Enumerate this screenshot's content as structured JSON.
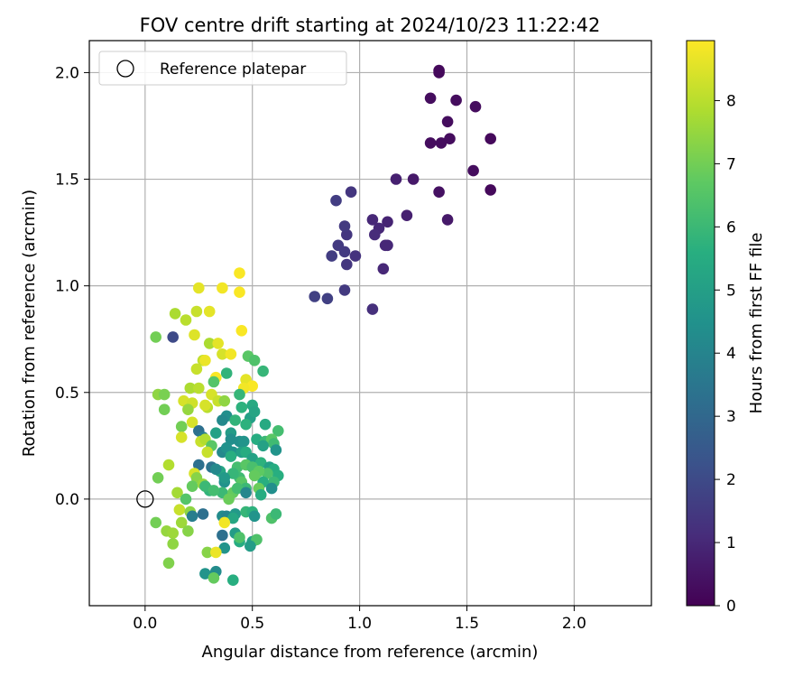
{
  "chart_data": {
    "type": "scatter",
    "title": "FOV centre drift starting at 2024/10/23 11:22:42",
    "xlabel": "Angular distance from reference (arcmin)",
    "ylabel": "Rotation from reference (arcmin)",
    "xlim": [
      -0.26,
      2.36
    ],
    "ylim": [
      -0.5,
      2.15
    ],
    "xticks": [
      0.0,
      0.5,
      1.0,
      1.5,
      2.0
    ],
    "xtick_labels": [
      "0.0",
      "0.5",
      "1.0",
      "1.5",
      "2.0"
    ],
    "yticks": [
      0.0,
      0.5,
      1.0,
      1.5,
      2.0
    ],
    "ytick_labels": [
      "0.0",
      "0.5",
      "1.0",
      "1.5",
      "2.0"
    ],
    "grid": true,
    "legend": {
      "placement": "top-left",
      "entries": [
        "Reference platepar"
      ]
    },
    "reference_point": {
      "x": 0.0,
      "y": 0.0,
      "label": "Reference platepar"
    },
    "colorbar": {
      "label": "Hours from first FF file",
      "colormap": "viridis",
      "range": [
        0,
        8.95
      ],
      "ticks": [
        0,
        1,
        2,
        3,
        4,
        5,
        6,
        7,
        8
      ],
      "tick_labels": [
        "0",
        "1",
        "2",
        "3",
        "4",
        "5",
        "6",
        "7",
        "8"
      ]
    },
    "points": [
      {
        "x": 1.37,
        "y": 2.01,
        "h": 0.2
      },
      {
        "x": 1.37,
        "y": 2.0,
        "h": 0.2
      },
      {
        "x": 1.33,
        "y": 1.88,
        "h": 0.3
      },
      {
        "x": 1.45,
        "y": 1.87,
        "h": 0.3
      },
      {
        "x": 1.54,
        "y": 1.84,
        "h": 0.3
      },
      {
        "x": 1.41,
        "y": 1.77,
        "h": 0.3
      },
      {
        "x": 1.61,
        "y": 1.69,
        "h": 0.2
      },
      {
        "x": 1.42,
        "y": 1.69,
        "h": 0.3
      },
      {
        "x": 1.38,
        "y": 1.67,
        "h": 0.3
      },
      {
        "x": 1.33,
        "y": 1.67,
        "h": 0.3
      },
      {
        "x": 1.53,
        "y": 1.54,
        "h": 0.3
      },
      {
        "x": 1.25,
        "y": 1.5,
        "h": 0.6
      },
      {
        "x": 1.17,
        "y": 1.5,
        "h": 0.8
      },
      {
        "x": 1.37,
        "y": 1.44,
        "h": 0.4
      },
      {
        "x": 1.61,
        "y": 1.45,
        "h": 0.2
      },
      {
        "x": 1.41,
        "y": 1.31,
        "h": 0.6
      },
      {
        "x": 1.22,
        "y": 1.33,
        "h": 0.8
      },
      {
        "x": 1.13,
        "y": 1.3,
        "h": 0.9
      },
      {
        "x": 1.06,
        "y": 1.31,
        "h": 1.0
      },
      {
        "x": 1.09,
        "y": 1.27,
        "h": 1.0
      },
      {
        "x": 1.07,
        "y": 1.24,
        "h": 1.1
      },
      {
        "x": 0.94,
        "y": 1.24,
        "h": 1.4
      },
      {
        "x": 0.93,
        "y": 1.28,
        "h": 1.5
      },
      {
        "x": 0.96,
        "y": 1.44,
        "h": 1.4
      },
      {
        "x": 0.89,
        "y": 1.4,
        "h": 1.6
      },
      {
        "x": 1.12,
        "y": 1.19,
        "h": 1.0
      },
      {
        "x": 1.13,
        "y": 1.19,
        "h": 1.0
      },
      {
        "x": 0.9,
        "y": 1.19,
        "h": 1.5
      },
      {
        "x": 0.93,
        "y": 1.16,
        "h": 1.5
      },
      {
        "x": 0.87,
        "y": 1.14,
        "h": 1.6
      },
      {
        "x": 0.98,
        "y": 1.14,
        "h": 1.3
      },
      {
        "x": 0.94,
        "y": 1.1,
        "h": 1.4
      },
      {
        "x": 1.11,
        "y": 1.08,
        "h": 1.0
      },
      {
        "x": 0.79,
        "y": 0.95,
        "h": 1.7
      },
      {
        "x": 0.85,
        "y": 0.94,
        "h": 1.7
      },
      {
        "x": 0.93,
        "y": 0.98,
        "h": 1.5
      },
      {
        "x": 1.06,
        "y": 0.89,
        "h": 1.2
      },
      {
        "x": 0.13,
        "y": 0.76,
        "h": 2.0
      },
      {
        "x": 0.44,
        "y": 1.06,
        "h": 8.9
      },
      {
        "x": 0.25,
        "y": 0.99,
        "h": 8.6
      },
      {
        "x": 0.36,
        "y": 0.99,
        "h": 8.8
      },
      {
        "x": 0.44,
        "y": 0.97,
        "h": 8.9
      },
      {
        "x": 0.14,
        "y": 0.87,
        "h": 7.8
      },
      {
        "x": 0.19,
        "y": 0.84,
        "h": 8.0
      },
      {
        "x": 0.24,
        "y": 0.88,
        "h": 8.2
      },
      {
        "x": 0.3,
        "y": 0.88,
        "h": 8.6
      },
      {
        "x": 0.45,
        "y": 0.79,
        "h": 8.9
      },
      {
        "x": 0.23,
        "y": 0.77,
        "h": 8.5
      },
      {
        "x": 0.05,
        "y": 0.76,
        "h": 7.0
      },
      {
        "x": 0.3,
        "y": 0.73,
        "h": 7.8
      },
      {
        "x": 0.34,
        "y": 0.73,
        "h": 8.6
      },
      {
        "x": 0.36,
        "y": 0.68,
        "h": 8.4
      },
      {
        "x": 0.4,
        "y": 0.68,
        "h": 8.8
      },
      {
        "x": 0.27,
        "y": 0.65,
        "h": 8.1
      },
      {
        "x": 0.28,
        "y": 0.65,
        "h": 8.7
      },
      {
        "x": 0.38,
        "y": 0.59,
        "h": 5.8
      },
      {
        "x": 0.24,
        "y": 0.61,
        "h": 8.2
      },
      {
        "x": 0.33,
        "y": 0.57,
        "h": 8.9
      },
      {
        "x": 0.32,
        "y": 0.55,
        "h": 6.5
      },
      {
        "x": 0.47,
        "y": 0.56,
        "h": 8.6
      },
      {
        "x": 0.5,
        "y": 0.53,
        "h": 8.9
      },
      {
        "x": 0.06,
        "y": 0.49,
        "h": 7.4
      },
      {
        "x": 0.09,
        "y": 0.49,
        "h": 7.1
      },
      {
        "x": 0.21,
        "y": 0.52,
        "h": 7.8
      },
      {
        "x": 0.25,
        "y": 0.52,
        "h": 8.0
      },
      {
        "x": 0.31,
        "y": 0.49,
        "h": 8.4
      },
      {
        "x": 0.34,
        "y": 0.46,
        "h": 8.2
      },
      {
        "x": 0.18,
        "y": 0.46,
        "h": 8.4
      },
      {
        "x": 0.22,
        "y": 0.45,
        "h": 8.3
      },
      {
        "x": 0.29,
        "y": 0.43,
        "h": 8.0
      },
      {
        "x": 0.37,
        "y": 0.46,
        "h": 7.4
      },
      {
        "x": 0.09,
        "y": 0.42,
        "h": 7.0
      },
      {
        "x": 0.2,
        "y": 0.42,
        "h": 7.5
      },
      {
        "x": 0.28,
        "y": 0.44,
        "h": 8.4
      },
      {
        "x": 0.46,
        "y": 0.52,
        "h": 8.8
      },
      {
        "x": 0.48,
        "y": 0.67,
        "h": 6.6
      },
      {
        "x": 0.51,
        "y": 0.65,
        "h": 6.4
      },
      {
        "x": 0.55,
        "y": 0.6,
        "h": 5.9
      },
      {
        "x": 0.44,
        "y": 0.49,
        "h": 5.9
      },
      {
        "x": 0.5,
        "y": 0.44,
        "h": 5.4
      },
      {
        "x": 0.45,
        "y": 0.43,
        "h": 5.7
      },
      {
        "x": 0.49,
        "y": 0.38,
        "h": 5.0
      },
      {
        "x": 0.51,
        "y": 0.41,
        "h": 5.2
      },
      {
        "x": 0.38,
        "y": 0.39,
        "h": 4.4
      },
      {
        "x": 0.36,
        "y": 0.37,
        "h": 4.2
      },
      {
        "x": 0.42,
        "y": 0.37,
        "h": 5.8
      },
      {
        "x": 0.56,
        "y": 0.35,
        "h": 5.4
      },
      {
        "x": 0.62,
        "y": 0.32,
        "h": 6.2
      },
      {
        "x": 0.47,
        "y": 0.35,
        "h": 5.7
      },
      {
        "x": 0.17,
        "y": 0.34,
        "h": 7.0
      },
      {
        "x": 0.22,
        "y": 0.36,
        "h": 8.4
      },
      {
        "x": 0.25,
        "y": 0.32,
        "h": 3.3
      },
      {
        "x": 0.27,
        "y": 0.29,
        "h": 3.7
      },
      {
        "x": 0.33,
        "y": 0.31,
        "h": 5.1
      },
      {
        "x": 0.4,
        "y": 0.31,
        "h": 4.9
      },
      {
        "x": 0.4,
        "y": 0.28,
        "h": 4.4
      },
      {
        "x": 0.44,
        "y": 0.27,
        "h": 4.4
      },
      {
        "x": 0.46,
        "y": 0.27,
        "h": 4.6
      },
      {
        "x": 0.52,
        "y": 0.28,
        "h": 5.5
      },
      {
        "x": 0.56,
        "y": 0.27,
        "h": 6.0
      },
      {
        "x": 0.59,
        "y": 0.28,
        "h": 6.6
      },
      {
        "x": 0.6,
        "y": 0.26,
        "h": 6.1
      },
      {
        "x": 0.55,
        "y": 0.25,
        "h": 5.1
      },
      {
        "x": 0.61,
        "y": 0.23,
        "h": 4.6
      },
      {
        "x": 0.17,
        "y": 0.29,
        "h": 8.4
      },
      {
        "x": 0.26,
        "y": 0.27,
        "h": 8.2
      },
      {
        "x": 0.28,
        "y": 0.28,
        "h": 7.9
      },
      {
        "x": 0.31,
        "y": 0.25,
        "h": 6.6
      },
      {
        "x": 0.29,
        "y": 0.22,
        "h": 8.2
      },
      {
        "x": 0.36,
        "y": 0.22,
        "h": 4.2
      },
      {
        "x": 0.38,
        "y": 0.24,
        "h": 4.5
      },
      {
        "x": 0.41,
        "y": 0.22,
        "h": 4.5
      },
      {
        "x": 0.45,
        "y": 0.22,
        "h": 5.0
      },
      {
        "x": 0.47,
        "y": 0.22,
        "h": 5.5
      },
      {
        "x": 0.5,
        "y": 0.19,
        "h": 5.1
      },
      {
        "x": 0.54,
        "y": 0.17,
        "h": 5.7
      },
      {
        "x": 0.4,
        "y": 0.2,
        "h": 5.6
      },
      {
        "x": 0.43,
        "y": 0.15,
        "h": 6.2
      },
      {
        "x": 0.47,
        "y": 0.16,
        "h": 6.6
      },
      {
        "x": 0.5,
        "y": 0.15,
        "h": 6.3
      },
      {
        "x": 0.58,
        "y": 0.15,
        "h": 5.0
      },
      {
        "x": 0.6,
        "y": 0.14,
        "h": 5.5
      },
      {
        "x": 0.62,
        "y": 0.11,
        "h": 5.6
      },
      {
        "x": 0.57,
        "y": 0.12,
        "h": 6.4
      },
      {
        "x": 0.6,
        "y": 0.08,
        "h": 6.0
      },
      {
        "x": 0.55,
        "y": 0.08,
        "h": 5.6
      },
      {
        "x": 0.53,
        "y": 0.13,
        "h": 6.7
      },
      {
        "x": 0.51,
        "y": 0.11,
        "h": 6.8
      },
      {
        "x": 0.44,
        "y": 0.1,
        "h": 6.1
      },
      {
        "x": 0.41,
        "y": 0.12,
        "h": 5.9
      },
      {
        "x": 0.35,
        "y": 0.13,
        "h": 5.3
      },
      {
        "x": 0.31,
        "y": 0.15,
        "h": 3.4
      },
      {
        "x": 0.33,
        "y": 0.14,
        "h": 4.2
      },
      {
        "x": 0.25,
        "y": 0.16,
        "h": 3.3
      },
      {
        "x": 0.11,
        "y": 0.16,
        "h": 7.9
      },
      {
        "x": 0.23,
        "y": 0.12,
        "h": 8.4
      },
      {
        "x": 0.24,
        "y": 0.1,
        "h": 7.3
      },
      {
        "x": 0.06,
        "y": 0.1,
        "h": 7.0
      },
      {
        "x": 0.37,
        "y": 0.08,
        "h": 4.5
      },
      {
        "x": 0.37,
        "y": 0.1,
        "h": 4.8
      },
      {
        "x": 0.45,
        "y": 0.08,
        "h": 6.6
      },
      {
        "x": 0.47,
        "y": 0.05,
        "h": 6.0
      },
      {
        "x": 0.53,
        "y": 0.05,
        "h": 6.9
      },
      {
        "x": 0.59,
        "y": 0.05,
        "h": 4.4
      },
      {
        "x": 0.3,
        "y": 0.04,
        "h": 5.8
      },
      {
        "x": 0.36,
        "y": 0.03,
        "h": 6.0
      },
      {
        "x": 0.41,
        "y": 0.03,
        "h": 6.8
      },
      {
        "x": 0.43,
        "y": 0.05,
        "h": 6.2
      },
      {
        "x": 0.47,
        "y": 0.03,
        "h": 4.1
      },
      {
        "x": 0.54,
        "y": 0.02,
        "h": 5.5
      },
      {
        "x": 0.15,
        "y": 0.03,
        "h": 7.7
      },
      {
        "x": 0.19,
        "y": 0.0,
        "h": 6.5
      },
      {
        "x": 0.22,
        "y": 0.06,
        "h": 6.8
      },
      {
        "x": 0.27,
        "y": 0.07,
        "h": 7.5
      },
      {
        "x": 0.28,
        "y": 0.06,
        "h": 6.0
      },
      {
        "x": 0.32,
        "y": 0.04,
        "h": 6.2
      },
      {
        "x": 0.39,
        "y": 0.0,
        "h": 6.9
      },
      {
        "x": 0.16,
        "y": -0.05,
        "h": 8.2
      },
      {
        "x": 0.21,
        "y": -0.06,
        "h": 7.4
      },
      {
        "x": 0.22,
        "y": -0.08,
        "h": 3.8
      },
      {
        "x": 0.27,
        "y": -0.07,
        "h": 3.3
      },
      {
        "x": 0.36,
        "y": -0.08,
        "h": 4.3
      },
      {
        "x": 0.38,
        "y": -0.08,
        "h": 4.0
      },
      {
        "x": 0.42,
        "y": -0.07,
        "h": 4.8
      },
      {
        "x": 0.41,
        "y": -0.09,
        "h": 5.3
      },
      {
        "x": 0.47,
        "y": -0.06,
        "h": 5.9
      },
      {
        "x": 0.5,
        "y": -0.06,
        "h": 5.7
      },
      {
        "x": 0.51,
        "y": -0.08,
        "h": 4.6
      },
      {
        "x": 0.59,
        "y": -0.09,
        "h": 6.4
      },
      {
        "x": 0.61,
        "y": -0.07,
        "h": 6.0
      },
      {
        "x": 0.05,
        "y": -0.11,
        "h": 7.0
      },
      {
        "x": 0.17,
        "y": -0.11,
        "h": 7.6
      },
      {
        "x": 0.1,
        "y": -0.15,
        "h": 7.5
      },
      {
        "x": 0.13,
        "y": -0.16,
        "h": 7.6
      },
      {
        "x": 0.2,
        "y": -0.15,
        "h": 7.3
      },
      {
        "x": 0.37,
        "y": -0.11,
        "h": 8.8
      },
      {
        "x": 0.36,
        "y": -0.17,
        "h": 3.3
      },
      {
        "x": 0.42,
        "y": -0.16,
        "h": 4.9
      },
      {
        "x": 0.44,
        "y": -0.2,
        "h": 5.5
      },
      {
        "x": 0.5,
        "y": -0.2,
        "h": 5.0
      },
      {
        "x": 0.52,
        "y": -0.19,
        "h": 6.4
      },
      {
        "x": 0.37,
        "y": -0.23,
        "h": 4.6
      },
      {
        "x": 0.44,
        "y": -0.18,
        "h": 6.4
      },
      {
        "x": 0.49,
        "y": -0.22,
        "h": 4.9
      },
      {
        "x": 0.13,
        "y": -0.21,
        "h": 7.4
      },
      {
        "x": 0.29,
        "y": -0.25,
        "h": 7.3
      },
      {
        "x": 0.33,
        "y": -0.25,
        "h": 8.7
      },
      {
        "x": 0.11,
        "y": -0.3,
        "h": 7.2
      },
      {
        "x": 0.28,
        "y": -0.35,
        "h": 4.6
      },
      {
        "x": 0.33,
        "y": -0.34,
        "h": 4.3
      },
      {
        "x": 0.32,
        "y": -0.37,
        "h": 6.8
      },
      {
        "x": 0.41,
        "y": -0.38,
        "h": 5.6
      }
    ]
  }
}
